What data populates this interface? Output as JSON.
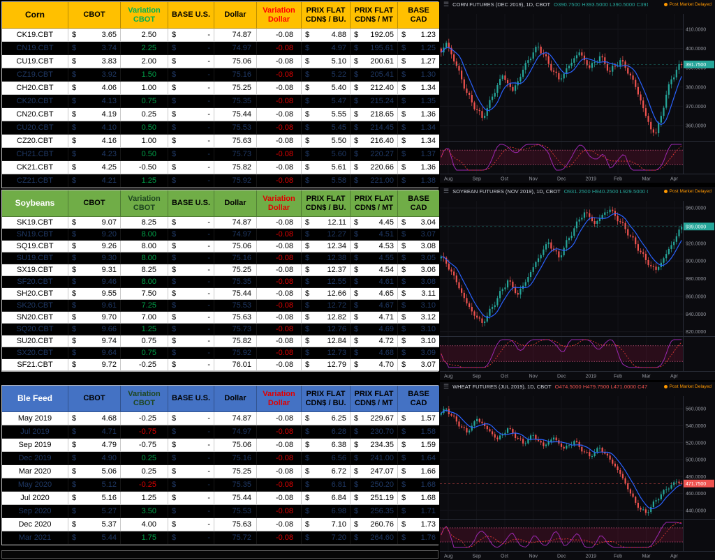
{
  "colors": {
    "up": "#26a69a",
    "down": "#ef5350",
    "ma_line": "#2962ff",
    "positive": "#00B050",
    "negative": "#FF0000",
    "corn_header": "#FFC000",
    "soy_header": "#70AD47",
    "ble_header": "#4472C4",
    "status_orange": "#FF9800"
  },
  "columns": [
    "CBOT",
    "Variation CBOT",
    "BASE U.S.",
    "Dollar",
    "Variation Dollar",
    "PRIX FLAT CDN$ / BU.",
    "PRIX FLAT CDN$ / MT",
    "BASE CAD"
  ],
  "tables": [
    {
      "name": "Corn",
      "header_bg": "#FFC000",
      "name_color": "#000000",
      "hdr_text": "#000000",
      "var_cbot_hdr": "#00B050",
      "var_dollar_hdr": "#FF0000",
      "rows": [
        {
          "label": "CK19.CBT",
          "cbot": "3.65",
          "var_cbot": "2.50",
          "base_us": "-",
          "dollar": "74.87",
          "var_dollar": "-0.08",
          "flat_bu": "4.88",
          "flat_mt": "192.05",
          "base_cad": "1.23",
          "dark": false
        },
        {
          "label": "CN19.CBT",
          "cbot": "3.74",
          "var_cbot": "2.25",
          "base_us": "-",
          "dollar": "74.97",
          "var_dollar": "-0.08",
          "flat_bu": "4.97",
          "flat_mt": "195.61",
          "base_cad": "1.25",
          "dark": true
        },
        {
          "label": "CU19.CBT",
          "cbot": "3.83",
          "var_cbot": "2.00",
          "base_us": "-",
          "dollar": "75.06",
          "var_dollar": "-0.08",
          "flat_bu": "5.10",
          "flat_mt": "200.61",
          "base_cad": "1.27",
          "dark": false
        },
        {
          "label": "CZ19.CBT",
          "cbot": "3.92",
          "var_cbot": "1.50",
          "base_us": "-",
          "dollar": "75.16",
          "var_dollar": "-0.08",
          "flat_bu": "5.22",
          "flat_mt": "205.41",
          "base_cad": "1.30",
          "dark": true
        },
        {
          "label": "CH20.CBT",
          "cbot": "4.06",
          "var_cbot": "1.00",
          "base_us": "-",
          "dollar": "75.25",
          "var_dollar": "-0.08",
          "flat_bu": "5.40",
          "flat_mt": "212.40",
          "base_cad": "1.34",
          "dark": false
        },
        {
          "label": "CK20.CBT",
          "cbot": "4.13",
          "var_cbot": "0.75",
          "base_us": "-",
          "dollar": "75.35",
          "var_dollar": "-0.08",
          "flat_bu": "5.47",
          "flat_mt": "215.24",
          "base_cad": "1.35",
          "dark": true
        },
        {
          "label": "CN20.CBT",
          "cbot": "4.19",
          "var_cbot": "0.25",
          "base_us": "-",
          "dollar": "75.44",
          "var_dollar": "-0.08",
          "flat_bu": "5.55",
          "flat_mt": "218.65",
          "base_cad": "1.36",
          "dark": false
        },
        {
          "label": "CU20.CBT",
          "cbot": "4.10",
          "var_cbot": "0.50",
          "base_us": "-",
          "dollar": "75.53",
          "var_dollar": "-0.08",
          "flat_bu": "5.45",
          "flat_mt": "214.45",
          "base_cad": "1.34",
          "dark": true
        },
        {
          "label": "CZ20.CBT",
          "cbot": "4.16",
          "var_cbot": "1.00",
          "base_us": "-",
          "dollar": "75.63",
          "var_dollar": "-0.08",
          "flat_bu": "5.50",
          "flat_mt": "216.40",
          "base_cad": "1.34",
          "dark": false
        },
        {
          "label": "CH21.CBT",
          "cbot": "4.23",
          "var_cbot": "0.50",
          "base_us": "-",
          "dollar": "75.73",
          "var_dollar": "-0.08",
          "flat_bu": "5.60",
          "flat_mt": "220.27",
          "base_cad": "1.37",
          "dark": true
        },
        {
          "label": "CK21.CBT",
          "cbot": "4.25",
          "var_cbot": "-0.50",
          "base_us": "-",
          "dollar": "75.82",
          "var_dollar": "-0.08",
          "flat_bu": "5.61",
          "flat_mt": "220.66",
          "base_cad": "1.36",
          "dark": false
        },
        {
          "label": "CZ21.CBT",
          "cbot": "4.21",
          "var_cbot": "1.25",
          "base_us": "-",
          "dollar": "75.92",
          "var_dollar": "-0.08",
          "flat_bu": "5.58",
          "flat_mt": "221.00",
          "base_cad": "1.38",
          "dark": true
        }
      ]
    },
    {
      "name": "Soybeans",
      "header_bg": "#70AD47",
      "name_color": "#FFFFFF",
      "hdr_text": "#000000",
      "var_cbot_hdr": "#1E4620",
      "var_dollar_hdr": "#E00000",
      "rows": [
        {
          "label": "SK19.CBT",
          "cbot": "9.07",
          "var_cbot": "8.25",
          "base_us": "-",
          "dollar": "74.87",
          "var_dollar": "-0.08",
          "flat_bu": "12.11",
          "flat_mt": "4.45",
          "base_cad": "3.04",
          "dark": false
        },
        {
          "label": "SN19.CBT",
          "cbot": "9.20",
          "var_cbot": "8.00",
          "base_us": "-",
          "dollar": "74.97",
          "var_dollar": "-0.08",
          "flat_bu": "12.27",
          "flat_mt": "4.51",
          "base_cad": "3.07",
          "dark": true
        },
        {
          "label": "SQ19.CBT",
          "cbot": "9.26",
          "var_cbot": "8.00",
          "base_us": "-",
          "dollar": "75.06",
          "var_dollar": "-0.08",
          "flat_bu": "12.34",
          "flat_mt": "4.53",
          "base_cad": "3.08",
          "dark": false
        },
        {
          "label": "SU19.CBT",
          "cbot": "9.30",
          "var_cbot": "8.00",
          "base_us": "-",
          "dollar": "75.16",
          "var_dollar": "-0.08",
          "flat_bu": "12.38",
          "flat_mt": "4.55",
          "base_cad": "3.05",
          "dark": true
        },
        {
          "label": "SX19.CBT",
          "cbot": "9.31",
          "var_cbot": "8.25",
          "base_us": "-",
          "dollar": "75.25",
          "var_dollar": "-0.08",
          "flat_bu": "12.37",
          "flat_mt": "4.54",
          "base_cad": "3.06",
          "dark": false
        },
        {
          "label": "SF20.CBT",
          "cbot": "9.46",
          "var_cbot": "8.00",
          "base_us": "-",
          "dollar": "75.35",
          "var_dollar": "-0.08",
          "flat_bu": "12.55",
          "flat_mt": "4.61",
          "base_cad": "3.08",
          "dark": true
        },
        {
          "label": "SH20.CBT",
          "cbot": "9.55",
          "var_cbot": "7.50",
          "base_us": "-",
          "dollar": "75.44",
          "var_dollar": "-0.08",
          "flat_bu": "12.66",
          "flat_mt": "4.65",
          "base_cad": "3.11",
          "dark": false
        },
        {
          "label": "SK20.CBT",
          "cbot": "9.61",
          "var_cbot": "7.25",
          "base_us": "-",
          "dollar": "75.53",
          "var_dollar": "-0.08",
          "flat_bu": "12.72",
          "flat_mt": "4.67",
          "base_cad": "3.10",
          "dark": true
        },
        {
          "label": "SN20.CBT",
          "cbot": "9.70",
          "var_cbot": "7.00",
          "base_us": "-",
          "dollar": "75.63",
          "var_dollar": "-0.08",
          "flat_bu": "12.82",
          "flat_mt": "4.71",
          "base_cad": "3.12",
          "dark": false
        },
        {
          "label": "SQ20.CBT",
          "cbot": "9.66",
          "var_cbot": "1.25",
          "base_us": "-",
          "dollar": "75.73",
          "var_dollar": "-0.08",
          "flat_bu": "12.76",
          "flat_mt": "4.69",
          "base_cad": "3.10",
          "dark": true
        },
        {
          "label": "SU20.CBT",
          "cbot": "9.74",
          "var_cbot": "0.75",
          "base_us": "-",
          "dollar": "75.82",
          "var_dollar": "-0.08",
          "flat_bu": "12.84",
          "flat_mt": "4.72",
          "base_cad": "3.10",
          "dark": false
        },
        {
          "label": "SX20.CBT",
          "cbot": "9.64",
          "var_cbot": "0.75",
          "base_us": "-",
          "dollar": "75.92",
          "var_dollar": "-0.08",
          "flat_bu": "12.73",
          "flat_mt": "4.68",
          "base_cad": "3.09",
          "dark": true
        },
        {
          "label": "SF21.CBT",
          "cbot": "9.72",
          "var_cbot": "-0.25",
          "base_us": "-",
          "dollar": "76.01",
          "var_dollar": "-0.08",
          "flat_bu": "12.79",
          "flat_mt": "4.70",
          "base_cad": "3.07",
          "dark": false
        }
      ]
    },
    {
      "name": "Ble Feed",
      "header_bg": "#4472C4",
      "name_color": "#FFFFFF",
      "hdr_text": "#000000",
      "var_cbot_hdr": "#1E4620",
      "var_dollar_hdr": "#E00000",
      "rows": [
        {
          "label": "May 2019",
          "cbot": "4.68",
          "var_cbot": "-0.25",
          "base_us": "-",
          "dollar": "74.87",
          "var_dollar": "-0.08",
          "flat_bu": "6.25",
          "flat_mt": "229.67",
          "base_cad": "1.57",
          "dark": false
        },
        {
          "label": "Jul 2019",
          "cbot": "4.71",
          "var_cbot": "-0.75",
          "base_us": "-",
          "dollar": "74.97",
          "var_dollar": "-0.08",
          "flat_bu": "6.28",
          "flat_mt": "230.70",
          "base_cad": "1.58",
          "dark": true
        },
        {
          "label": "Sep 2019",
          "cbot": "4.79",
          "var_cbot": "-0.75",
          "base_us": "-",
          "dollar": "75.06",
          "var_dollar": "-0.08",
          "flat_bu": "6.38",
          "flat_mt": "234.35",
          "base_cad": "1.59",
          "dark": false
        },
        {
          "label": "Dec 2019",
          "cbot": "4.90",
          "var_cbot": "0.25",
          "base_us": "-",
          "dollar": "75.16",
          "var_dollar": "-0.08",
          "flat_bu": "6.56",
          "flat_mt": "241.00",
          "base_cad": "1.64",
          "dark": true
        },
        {
          "label": "Mar 2020",
          "cbot": "5.06",
          "var_cbot": "0.25",
          "base_us": "-",
          "dollar": "75.25",
          "var_dollar": "-0.08",
          "flat_bu": "6.72",
          "flat_mt": "247.07",
          "base_cad": "1.66",
          "dark": false
        },
        {
          "label": "May 2020",
          "cbot": "5.12",
          "var_cbot": "-0.25",
          "base_us": "-",
          "dollar": "75.35",
          "var_dollar": "-0.08",
          "flat_bu": "6.81",
          "flat_mt": "250.20",
          "base_cad": "1.68",
          "dark": true
        },
        {
          "label": "Jul 2020",
          "cbot": "5.16",
          "var_cbot": "1.25",
          "base_us": "-",
          "dollar": "75.44",
          "var_dollar": "-0.08",
          "flat_bu": "6.84",
          "flat_mt": "251.19",
          "base_cad": "1.68",
          "dark": false
        },
        {
          "label": "Sep 2020",
          "cbot": "5.27",
          "var_cbot": "3.50",
          "base_us": "-",
          "dollar": "75.53",
          "var_dollar": "-0.08",
          "flat_bu": "6.98",
          "flat_mt": "256.35",
          "base_cad": "1.71",
          "dark": true
        },
        {
          "label": "Dec 2020",
          "cbot": "5.37",
          "var_cbot": "4.00",
          "base_us": "-",
          "dollar": "75.63",
          "var_dollar": "-0.08",
          "flat_bu": "7.10",
          "flat_mt": "260.76",
          "base_cad": "1.73",
          "dark": false
        },
        {
          "label": "Mar 2021",
          "cbot": "5.44",
          "var_cbot": "1.75",
          "base_us": "-",
          "dollar": "75.72",
          "var_dollar": "-0.08",
          "flat_bu": "7.20",
          "flat_mt": "264.60",
          "base_cad": "1.76",
          "dark": true
        }
      ]
    }
  ],
  "charts": [
    {
      "title": "CORN FUTURES (DEC 2019), 1D, CBOT",
      "ohlc": "O390.7500  H393.5000  L390.5000  C391.7500  +1.0000 (+0.26%)",
      "status": "Post Market   Delayed",
      "dir": "up",
      "last_label": "391.7500",
      "range": [
        352,
        418
      ],
      "ticks": [
        360,
        370,
        380,
        390,
        400,
        410
      ],
      "months": [
        "Aug",
        "Sep",
        "Oct",
        "Nov",
        "Dec",
        "2019",
        "Feb",
        "Mar",
        "Apr"
      ],
      "wick": 2.2,
      "closes": [
        398,
        403,
        397,
        391,
        384,
        377,
        372,
        368,
        364,
        369,
        375,
        381,
        386,
        382,
        378,
        383,
        389,
        394,
        398,
        401,
        397,
        392,
        388,
        384,
        387,
        391,
        395,
        398,
        394,
        390,
        393,
        396,
        392,
        388,
        391,
        394,
        390,
        386,
        380,
        373,
        365,
        358,
        356,
        365,
        376,
        384,
        389,
        391.75
      ]
    },
    {
      "title": "SOYBEAN FUTURES (NOV 2019), 1D, CBOT",
      "ohlc": "O931.2500  H940.2500  L929.5000  C939.0000  +7.0000 (+0.75%)",
      "status": "Post Market   Delayed",
      "dir": "up",
      "last_label": "939.0000",
      "range": [
        815,
        968
      ],
      "ticks": [
        820,
        840,
        860,
        880,
        900,
        920,
        940,
        960
      ],
      "months": [
        "Aug",
        "Sep",
        "Oct",
        "Nov",
        "Dec",
        "2019",
        "Feb",
        "Mar",
        "Apr"
      ],
      "wick": 4.5,
      "closes": [
        905,
        897,
        888,
        876,
        864,
        852,
        843,
        836,
        830,
        838,
        848,
        858,
        868,
        878,
        870,
        862,
        872,
        882,
        893,
        903,
        913,
        921,
        912,
        904,
        915,
        926,
        937,
        947,
        955,
        950,
        942,
        948,
        955,
        958,
        951,
        944,
        936,
        928,
        919,
        910,
        901,
        894,
        890,
        898,
        908,
        918,
        928,
        939
      ]
    },
    {
      "title": "WHEAT FUTURES (JUL 2019), 1D, CBOT",
      "ohlc": "O474.5000  H479.7500  L471.0000  C471.7500  -1.0000 (-0.21%)",
      "status": "Post Market   Delayed",
      "dir": "down",
      "last_label": "471.7500",
      "range": [
        430,
        575
      ],
      "ticks": [
        440,
        460,
        480,
        500,
        520,
        540,
        560
      ],
      "months": [
        "Aug",
        "Sep",
        "Oct",
        "Nov",
        "Dec",
        "2019",
        "Feb",
        "Mar",
        "Apr"
      ],
      "wick": 3.5,
      "closes": [
        555,
        560,
        552,
        545,
        538,
        532,
        540,
        548,
        543,
        536,
        530,
        524,
        530,
        537,
        531,
        525,
        519,
        524,
        529,
        522,
        516,
        521,
        526,
        519,
        513,
        517,
        522,
        515,
        509,
        504,
        509,
        514,
        507,
        500,
        492,
        483,
        472,
        460,
        449,
        441,
        437,
        444,
        452,
        459,
        465,
        470,
        474,
        471.75
      ]
    }
  ]
}
